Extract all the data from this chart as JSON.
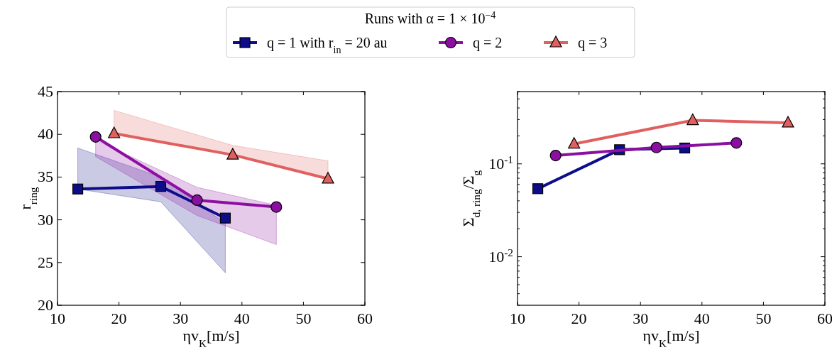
{
  "chart_data": [
    {
      "type": "line",
      "xlabel": "ηv$_{K}$[m/s]",
      "ylabel": "r$_{ring}$",
      "legend": "top",
      "legend_title": "Runs with α = 1 × 10$^{−4}$",
      "xlim": [
        10,
        60
      ],
      "ylim": [
        20,
        45
      ],
      "xticks": [
        10,
        20,
        30,
        40,
        50,
        60
      ],
      "yticks": [
        20,
        25,
        30,
        35,
        40,
        45
      ],
      "line_style": "solid",
      "series": [
        {
          "name": "q = 1 with r$_{in}$ = 20 au",
          "color": "#0d0d8a",
          "marker": "square",
          "x": [
            13.3,
            26.8,
            37.3
          ],
          "values": [
            33.6,
            33.9,
            30.2
          ],
          "lower": [
            33.6,
            32.1,
            23.8
          ],
          "upper": [
            38.4,
            35.0,
            29.6
          ]
        },
        {
          "name": "q = 2",
          "color": "#8b0fa0",
          "marker": "circle",
          "x": [
            16.2,
            32.7,
            45.6
          ],
          "values": [
            39.7,
            32.3,
            31.5
          ],
          "lower": [
            37.4,
            30.5,
            27.1
          ],
          "upper": [
            39.3,
            33.8,
            31.7
          ]
        },
        {
          "name": "q = 3",
          "color": "#e06060",
          "marker": "triangle",
          "x": [
            19.2,
            38.5,
            54
          ],
          "values": [
            40.1,
            37.6,
            34.8
          ],
          "lower": [
            40.1,
            37.6,
            34.8
          ],
          "upper": [
            42.8,
            38.7,
            36.9
          ]
        }
      ]
    },
    {
      "type": "line",
      "xlabel": "ηv$_{K}$[m/s]",
      "ylabel": "Σ$_{d, ring}$/Σ$_{g}$",
      "log": true,
      "xlim": [
        10,
        60
      ],
      "ylim": [
        0.003,
        0.6
      ],
      "xticks": [
        10,
        20,
        30,
        40,
        50,
        60
      ],
      "yticks": [
        {
          "value": 0.003,
          "label": null
        },
        {
          "value": 0.004,
          "label": null
        },
        {
          "value": 0.005,
          "label": null
        },
        {
          "value": 0.006,
          "label": null
        },
        {
          "value": 0.007,
          "label": null
        },
        {
          "value": 0.008,
          "label": null
        },
        {
          "value": 0.009,
          "label": null
        },
        {
          "value": 0.01,
          "label": "10$^{-2}$"
        },
        {
          "value": 0.02,
          "label": null
        },
        {
          "value": 0.03,
          "label": null
        },
        {
          "value": 0.04,
          "label": null
        },
        {
          "value": 0.05,
          "label": null
        },
        {
          "value": 0.06,
          "label": null
        },
        {
          "value": 0.07,
          "label": null
        },
        {
          "value": 0.08,
          "label": null
        },
        {
          "value": 0.09,
          "label": null
        },
        {
          "value": 0.1,
          "label": "10$^{-1}$"
        },
        {
          "value": 0.2,
          "label": null
        },
        {
          "value": 0.3,
          "label": null
        },
        {
          "value": 0.4,
          "label": null
        },
        {
          "value": 0.5,
          "label": null
        },
        {
          "value": 0.6,
          "label": null
        }
      ],
      "line_style": "solid",
      "series": [
        {
          "color": "#0d0d8a",
          "marker": "square",
          "x": [
            13.3,
            26.6,
            37.2
          ],
          "values": [
            0.054,
            0.142,
            0.148
          ]
        },
        {
          "color": "#8b0fa0",
          "marker": "circle",
          "x": [
            16.2,
            32.6,
            45.6
          ],
          "values": [
            0.123,
            0.15,
            0.168
          ]
        },
        {
          "color": "#e06060",
          "marker": "triangle",
          "x": [
            19.2,
            38.5,
            54
          ],
          "values": [
            0.164,
            0.294,
            0.277
          ]
        }
      ]
    }
  ]
}
